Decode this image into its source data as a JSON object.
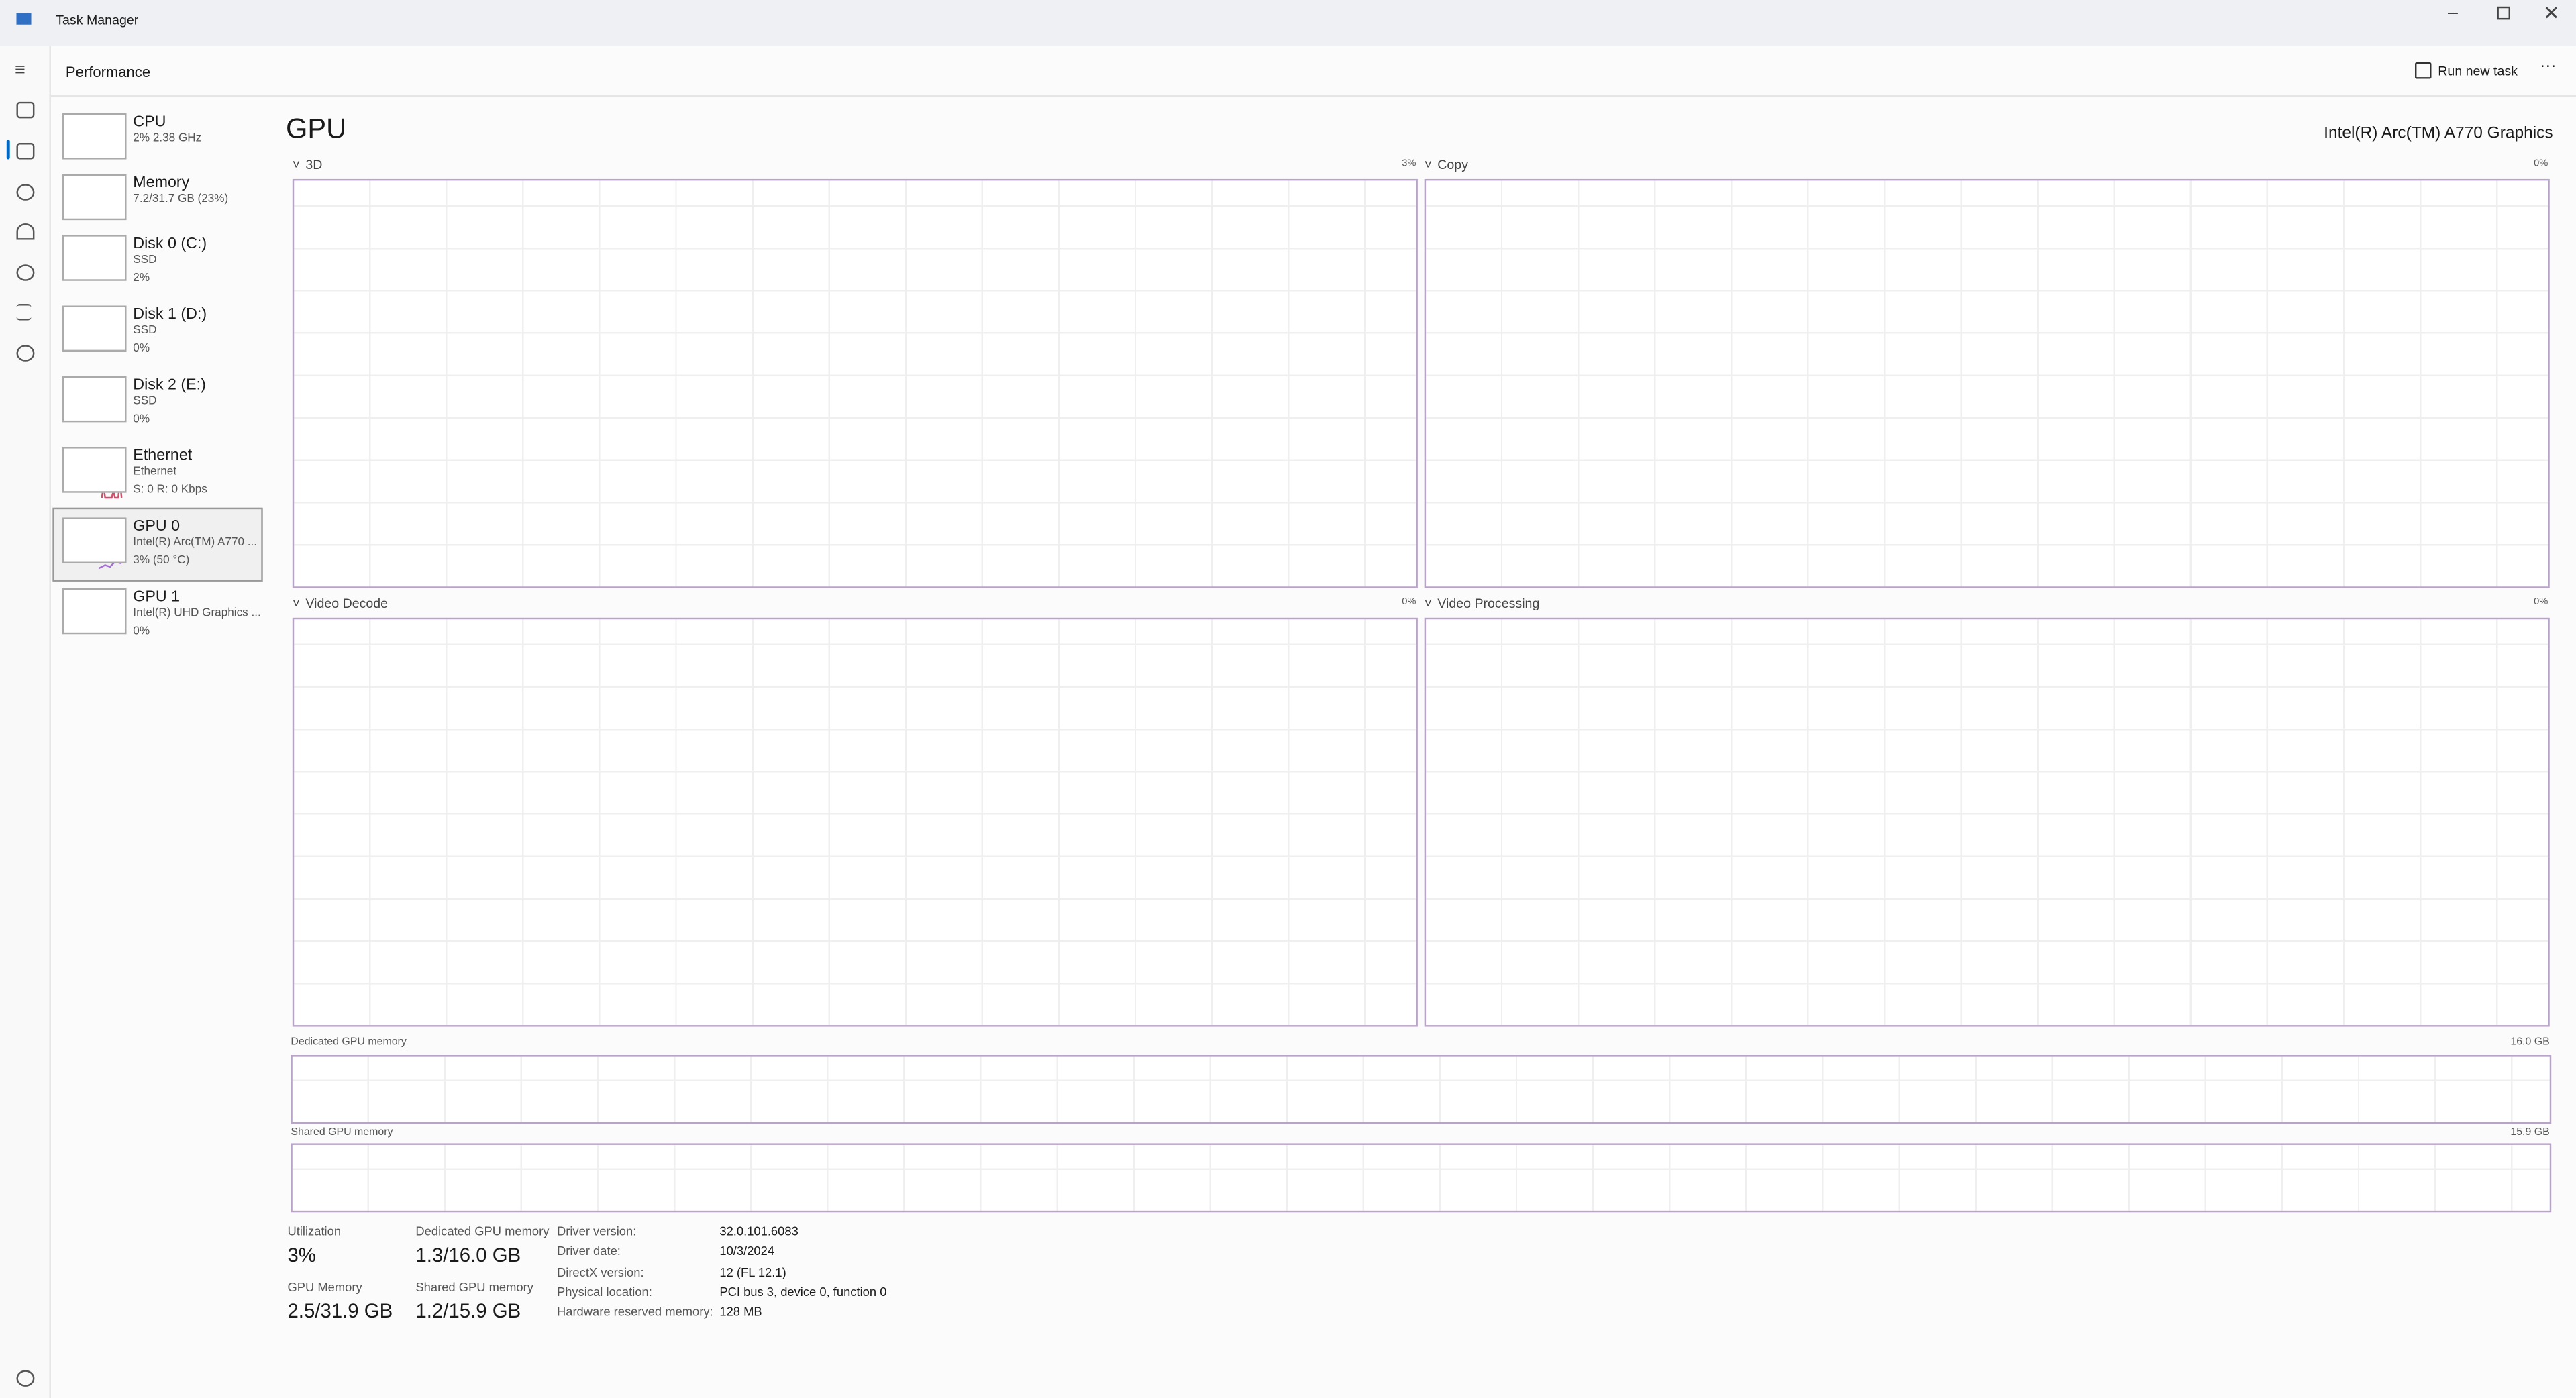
{
  "window": {
    "title": "Task Manager"
  },
  "header": {
    "title": "Performance",
    "run_new_task": "Run new task"
  },
  "sidebar": [
    {
      "name": "CPU",
      "lines": [
        "2% 2.38 GHz"
      ]
    },
    {
      "name": "Memory",
      "lines": [
        "7.2/31.7 GB (23%)"
      ]
    },
    {
      "name": "Disk 0 (C:)",
      "lines": [
        "SSD",
        "2%"
      ]
    },
    {
      "name": "Disk 1 (D:)",
      "lines": [
        "SSD",
        "0%"
      ]
    },
    {
      "name": "Disk 2 (E:)",
      "lines": [
        "SSD",
        "0%"
      ]
    },
    {
      "name": "Ethernet",
      "lines": [
        "Ethernet",
        "S: 0 R: 0 Kbps"
      ]
    },
    {
      "name": "GPU 0",
      "lines": [
        "Intel(R) Arc(TM) A770 ...",
        "3% (50 °C)"
      ]
    },
    {
      "name": "GPU 1",
      "lines": [
        "Intel(R) UHD Graphics ...",
        "0%"
      ]
    }
  ],
  "gpu": {
    "title": "GPU",
    "adapter": "Intel(R) Arc(TM) A770 Graphics"
  },
  "engines": [
    {
      "name": "3D",
      "value": "3%"
    },
    {
      "name": "Copy",
      "value": "0%"
    },
    {
      "name": "Video Decode",
      "value": "0%"
    },
    {
      "name": "Video Processing",
      "value": "0%"
    }
  ],
  "memory_graphs": [
    {
      "name": "Dedicated GPU memory",
      "max": "16.0 GB"
    },
    {
      "name": "Shared GPU memory",
      "max": "15.9 GB"
    }
  ],
  "stats": [
    {
      "label": "Utilization",
      "value": "3%"
    },
    {
      "label": "Dedicated GPU memory",
      "value": "1.3/16.0 GB"
    },
    {
      "label": "GPU Memory",
      "value": "2.5/31.9 GB"
    },
    {
      "label": "Shared GPU memory",
      "value": "1.2/15.9 GB"
    }
  ],
  "details": [
    {
      "label": "Driver version:",
      "value": "32.0.101.6083"
    },
    {
      "label": "Driver date:",
      "value": "10/3/2024"
    },
    {
      "label": "DirectX version:",
      "value": "12 (FL 12.1)"
    },
    {
      "label": "Physical location:",
      "value": "PCI bus 3, device 0, function 0"
    },
    {
      "label": "Hardware reserved memory:",
      "value": "128 MB"
    }
  ]
}
